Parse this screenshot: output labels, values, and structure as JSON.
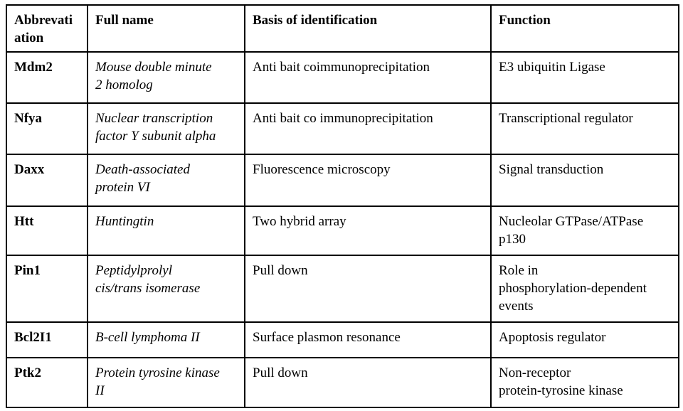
{
  "table": {
    "headers": {
      "abbreviation": "Abbrevati\nation",
      "full_name": "Full name",
      "basis": "Basis of identification",
      "function": "Function"
    },
    "rows": [
      {
        "abbreviation": "Mdm2",
        "full_name": "Mouse double minute\n2 homolog",
        "basis": "Anti bait coimmunoprecipitation",
        "function": "E3 ubiquitin Ligase"
      },
      {
        "abbreviation": "Nfya",
        "full_name": "Nuclear transcription\nfactor Y subunit alpha",
        "basis": "Anti bait co immunoprecipitation",
        "function": "Transcriptional regulator"
      },
      {
        "abbreviation": "Daxx",
        "full_name": "Death-associated\nprotein VI",
        "basis": "Fluorescence microscopy",
        "function": "Signal transduction"
      },
      {
        "abbreviation": "Htt",
        "full_name": "Huntingtin",
        "basis": "Two hybrid array",
        "function": "Nucleolar GTPase/ATPase\np130"
      },
      {
        "abbreviation": "Pin1",
        "full_name": "Peptidylprolyl\ncis/trans isomerase",
        "basis": "Pull down",
        "function": "Role in\nphosphorylation-dependent\nevents"
      },
      {
        "abbreviation": "Bcl2I1",
        "full_name": "B-cell lymphoma II",
        "basis": "Surface plasmon resonance",
        "function": "Apoptosis regulator"
      },
      {
        "abbreviation": "Ptk2",
        "full_name": "Protein tyrosine kinase\nII",
        "basis": "Pull down",
        "function": "Non-receptor\nprotein-tyrosine kinase"
      }
    ],
    "colors": {
      "border": "#000000",
      "text": "#000000",
      "background": "#ffffff"
    }
  }
}
